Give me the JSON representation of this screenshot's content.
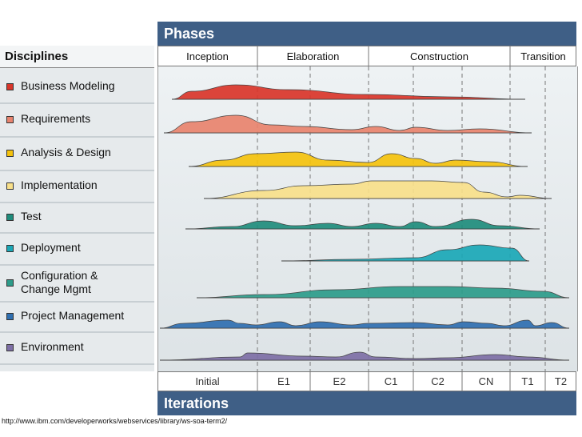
{
  "header": {
    "phases_title": "Phases",
    "iterations_title": "Iterations",
    "disciplines_title": "Disciplines"
  },
  "phases": [
    "Inception",
    "Elaboration",
    "Construction",
    "Transition"
  ],
  "iterations": [
    "Initial",
    "E1",
    "E2",
    "C1",
    "C2",
    "CN",
    "T1",
    "T2"
  ],
  "disciplines": [
    {
      "label": "Business Modeling",
      "color": "#d9352a"
    },
    {
      "label": "Requirements",
      "color": "#e8836e"
    },
    {
      "label": "Analysis & Design",
      "color": "#f4c20d"
    },
    {
      "label": "Implementation",
      "color": "#f8e08a"
    },
    {
      "label": "Test",
      "color": "#1f8c7c"
    },
    {
      "label": "Deployment",
      "color": "#1aa7b6"
    },
    {
      "label": "Configuration &\nChange Mgmt",
      "color": "#2d9c8a"
    },
    {
      "label": "Project Management",
      "color": "#2f6fb0"
    },
    {
      "label": "Environment",
      "color": "#7d6fa6"
    }
  ],
  "source_url": "http://www.ibm.com/developerworks/webservices/library/ws-soa-term2/"
}
